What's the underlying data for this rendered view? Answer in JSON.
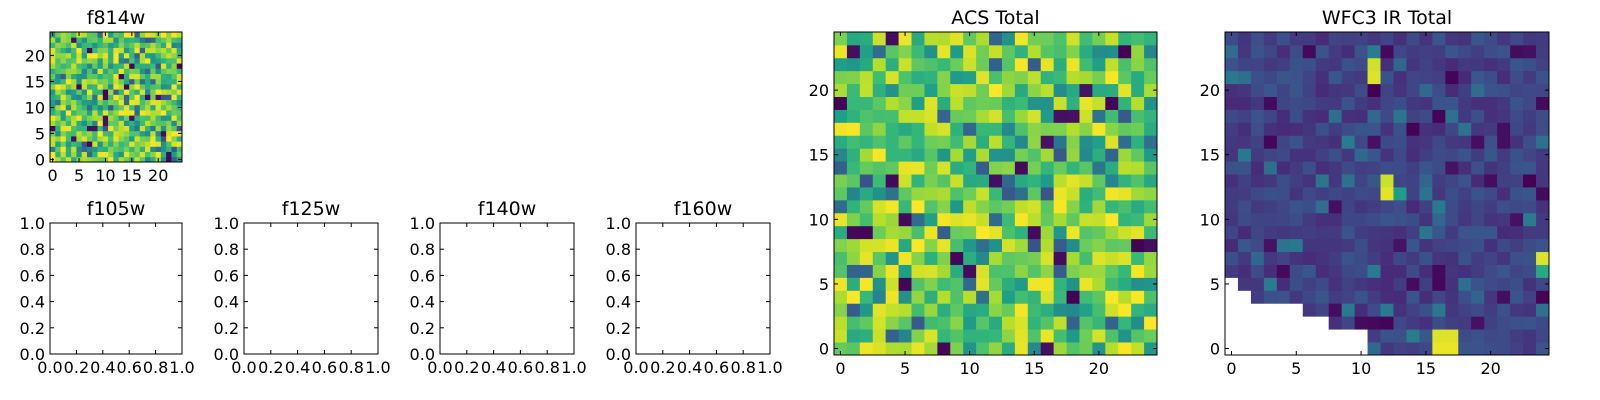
{
  "chart_data": [
    {
      "type": "heatmap",
      "title": "f814w",
      "rows": 25,
      "cols": 25,
      "xlim": [
        -0.5,
        24.5
      ],
      "ylim": [
        -0.5,
        24.5
      ],
      "xticks": [
        "0",
        "5",
        "10",
        "15",
        "20"
      ],
      "yticks": [
        "0",
        "5",
        "10",
        "15",
        "20"
      ],
      "colormap": "viridis",
      "pattern": "acs"
    },
    {
      "type": "heatmap",
      "title": "f105w",
      "empty": true,
      "xlim": [
        0,
        1
      ],
      "ylim": [
        0,
        1
      ],
      "xticks": [
        "0.0",
        "0.2",
        "0.4",
        "0.6",
        "0.8",
        "1.0"
      ],
      "yticks": [
        "0.0",
        "0.2",
        "0.4",
        "0.6",
        "0.8",
        "1.0"
      ]
    },
    {
      "type": "heatmap",
      "title": "f125w",
      "empty": true,
      "xlim": [
        0,
        1
      ],
      "ylim": [
        0,
        1
      ],
      "xticks": [
        "0.0",
        "0.2",
        "0.4",
        "0.6",
        "0.8",
        "1.0"
      ],
      "yticks": [
        "0.0",
        "0.2",
        "0.4",
        "0.6",
        "0.8",
        "1.0"
      ]
    },
    {
      "type": "heatmap",
      "title": "f140w",
      "empty": true,
      "xlim": [
        0,
        1
      ],
      "ylim": [
        0,
        1
      ],
      "xticks": [
        "0.0",
        "0.2",
        "0.4",
        "0.6",
        "0.8",
        "1.0"
      ],
      "yticks": [
        "0.0",
        "0.2",
        "0.4",
        "0.6",
        "0.8",
        "1.0"
      ]
    },
    {
      "type": "heatmap",
      "title": "f160w",
      "empty": true,
      "xlim": [
        0,
        1
      ],
      "ylim": [
        0,
        1
      ],
      "xticks": [
        "0.0",
        "0.2",
        "0.4",
        "0.6",
        "0.8",
        "1.0"
      ],
      "yticks": [
        "0.0",
        "0.2",
        "0.4",
        "0.6",
        "0.8",
        "1.0"
      ]
    },
    {
      "type": "heatmap",
      "title": "ACS Total",
      "rows": 25,
      "cols": 25,
      "xlim": [
        -0.5,
        24.5
      ],
      "ylim": [
        -0.5,
        24.5
      ],
      "xticks": [
        "0",
        "5",
        "10",
        "15",
        "20"
      ],
      "yticks": [
        "0",
        "5",
        "10",
        "15",
        "20"
      ],
      "colormap": "viridis",
      "pattern": "acs"
    },
    {
      "type": "heatmap",
      "title": "WFC3 IR Total",
      "rows": 25,
      "cols": 25,
      "xlim": [
        -0.5,
        24.5
      ],
      "ylim": [
        -0.5,
        24.5
      ],
      "xticks": [
        "0",
        "5",
        "10",
        "15",
        "20"
      ],
      "yticks": [
        "0",
        "5",
        "10",
        "15",
        "20"
      ],
      "colormap": "viridis",
      "pattern": "wfc3",
      "masked_cells": {
        "row_0": 11,
        "row_1": 11,
        "row_2": 8,
        "row_3": 6,
        "row_4": 2,
        "row_5": 1
      }
    }
  ]
}
